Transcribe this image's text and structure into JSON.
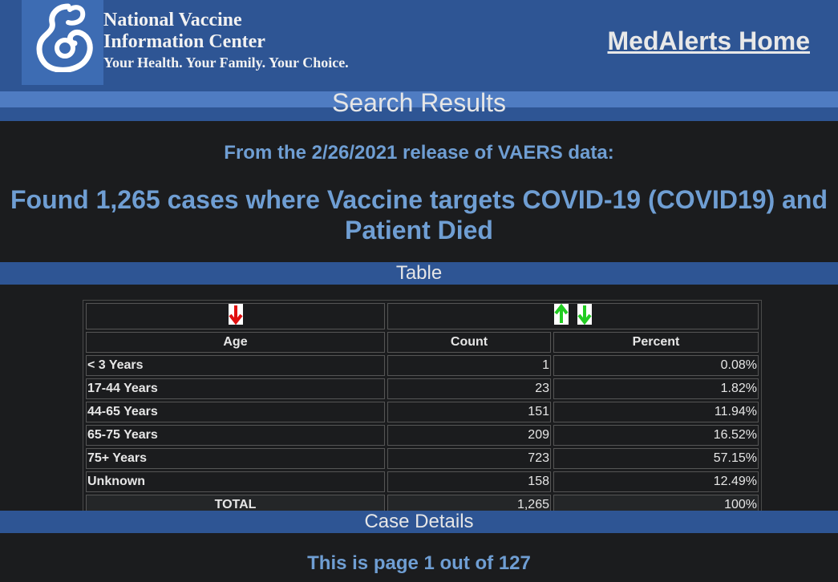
{
  "header": {
    "org_line1": "National Vaccine",
    "org_line2": "Information Center",
    "tagline": "Your Health. Your Family. Your Choice.",
    "home_link": "MedAlerts Home"
  },
  "search_band": {
    "label": "Search Results"
  },
  "release_text": "From the 2/26/2021 release of VAERS data:",
  "found_text": "Found 1,265 cases where Vaccine targets COVID-19 (COVID19) and Patient Died",
  "table_band": {
    "label": "Table"
  },
  "table": {
    "headers": [
      "Age",
      "Count",
      "Percent"
    ],
    "rows": [
      {
        "label": "< 3 Years",
        "count": "1",
        "percent": "0.08%"
      },
      {
        "label": "17-44 Years",
        "count": "23",
        "percent": "1.82%"
      },
      {
        "label": "44-65 Years",
        "count": "151",
        "percent": "11.94%"
      },
      {
        "label": "65-75 Years",
        "count": "209",
        "percent": "16.52%"
      },
      {
        "label": "75+ Years",
        "count": "723",
        "percent": "57.15%"
      },
      {
        "label": "Unknown",
        "count": "158",
        "percent": "12.49%"
      }
    ],
    "total": {
      "label": "TOTAL",
      "count": "1,265",
      "percent": "100%"
    }
  },
  "case_band": {
    "label": "Case Details"
  },
  "page_text": "This is page 1 out of 127",
  "colors": {
    "header_bg": "#2e5594",
    "accent_text": "#6f9ed3",
    "sort_active": "#e01010",
    "sort_inactive": "#22cc22"
  }
}
